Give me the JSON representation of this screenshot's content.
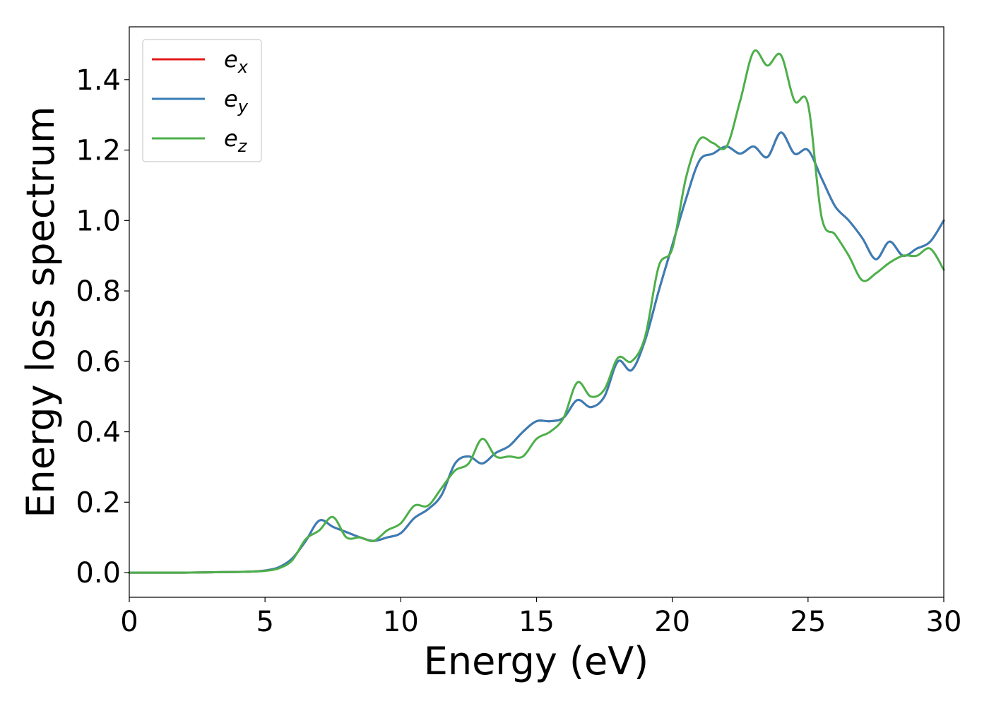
{
  "chart_data": {
    "type": "line",
    "title": "",
    "xlabel": "Energy (eV)",
    "ylabel": "Energy loss spectrum",
    "xlim": [
      0,
      30
    ],
    "ylim": [
      -0.07,
      1.55
    ],
    "xticks": [
      0,
      5,
      10,
      15,
      20,
      25,
      30
    ],
    "xtick_labels": [
      "0",
      "5",
      "10",
      "15",
      "20",
      "25",
      "30"
    ],
    "yticks": [
      0.0,
      0.2,
      0.4,
      0.6,
      0.8,
      1.0,
      1.2,
      1.4
    ],
    "ytick_labels": [
      "0.0",
      "0.2",
      "0.4",
      "0.6",
      "0.8",
      "1.0",
      "1.2",
      "1.4"
    ],
    "grid": false,
    "legend_position": "upper-left",
    "legend": [
      {
        "base": "e",
        "sub": "x",
        "color": "#e41a1c"
      },
      {
        "base": "e",
        "sub": "y",
        "color": "#377eb8"
      },
      {
        "base": "e",
        "sub": "z",
        "color": "#4daf4a"
      }
    ],
    "x": [
      0,
      1,
      2,
      3,
      4,
      4.5,
      5,
      5.5,
      6,
      6.5,
      7,
      7.5,
      8,
      8.5,
      9,
      9.5,
      10,
      10.5,
      11,
      11.5,
      12,
      12.5,
      13,
      13.5,
      14,
      14.5,
      15,
      15.5,
      16,
      16.5,
      17,
      17.5,
      18,
      18.5,
      19,
      19.5,
      20,
      20.5,
      21,
      21.5,
      22,
      22.5,
      23,
      23.5,
      24,
      24.5,
      25,
      25.5,
      26,
      26.5,
      27,
      27.5,
      28,
      28.5,
      29,
      29.5,
      30
    ],
    "series": [
      {
        "name": "e_x",
        "color": "#e41a1c",
        "values": [
          0.0,
          0.0,
          0.0,
          0.001,
          0.002,
          0.003,
          0.006,
          0.015,
          0.04,
          0.09,
          0.148,
          0.13,
          0.115,
          0.1,
          0.09,
          0.1,
          0.112,
          0.155,
          0.18,
          0.22,
          0.31,
          0.33,
          0.31,
          0.34,
          0.36,
          0.4,
          0.43,
          0.43,
          0.44,
          0.49,
          0.47,
          0.5,
          0.6,
          0.575,
          0.66,
          0.8,
          0.93,
          1.06,
          1.17,
          1.19,
          1.21,
          1.19,
          1.21,
          1.18,
          1.25,
          1.19,
          1.2,
          1.12,
          1.04,
          1.0,
          0.95,
          0.89,
          0.94,
          0.9,
          0.92,
          0.94,
          1.0
        ]
      },
      {
        "name": "e_y",
        "color": "#377eb8",
        "values": [
          0.0,
          0.0,
          0.0,
          0.001,
          0.002,
          0.003,
          0.006,
          0.015,
          0.04,
          0.09,
          0.148,
          0.13,
          0.115,
          0.1,
          0.09,
          0.1,
          0.112,
          0.155,
          0.18,
          0.22,
          0.31,
          0.33,
          0.31,
          0.34,
          0.36,
          0.4,
          0.43,
          0.43,
          0.44,
          0.49,
          0.47,
          0.5,
          0.6,
          0.575,
          0.66,
          0.8,
          0.93,
          1.06,
          1.17,
          1.19,
          1.21,
          1.19,
          1.21,
          1.18,
          1.25,
          1.19,
          1.2,
          1.12,
          1.04,
          1.0,
          0.95,
          0.89,
          0.94,
          0.9,
          0.92,
          0.94,
          1.0
        ]
      },
      {
        "name": "e_z",
        "color": "#4daf4a",
        "values": [
          0.0,
          0.0,
          0.0,
          0.001,
          0.002,
          0.003,
          0.005,
          0.012,
          0.035,
          0.095,
          0.12,
          0.158,
          0.1,
          0.1,
          0.09,
          0.12,
          0.14,
          0.19,
          0.19,
          0.24,
          0.29,
          0.31,
          0.38,
          0.33,
          0.33,
          0.33,
          0.38,
          0.4,
          0.44,
          0.54,
          0.5,
          0.52,
          0.61,
          0.6,
          0.67,
          0.87,
          0.92,
          1.12,
          1.23,
          1.22,
          1.21,
          1.34,
          1.48,
          1.44,
          1.47,
          1.34,
          1.33,
          1.01,
          0.96,
          0.9,
          0.83,
          0.85,
          0.88,
          0.9,
          0.9,
          0.92,
          0.86
        ]
      }
    ]
  }
}
